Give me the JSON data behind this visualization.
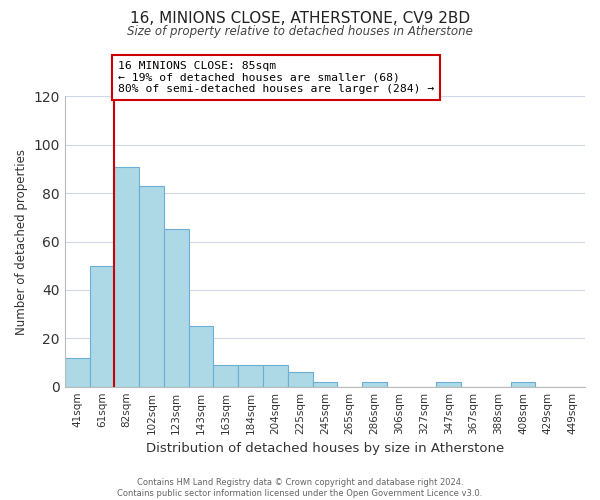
{
  "title": "16, MINIONS CLOSE, ATHERSTONE, CV9 2BD",
  "subtitle": "Size of property relative to detached houses in Atherstone",
  "xlabel": "Distribution of detached houses by size in Atherstone",
  "ylabel": "Number of detached properties",
  "footer_line1": "Contains HM Land Registry data © Crown copyright and database right 2024.",
  "footer_line2": "Contains public sector information licensed under the Open Government Licence v3.0.",
  "bar_labels": [
    "41sqm",
    "61sqm",
    "82sqm",
    "102sqm",
    "123sqm",
    "143sqm",
    "163sqm",
    "184sqm",
    "204sqm",
    "225sqm",
    "245sqm",
    "265sqm",
    "286sqm",
    "306sqm",
    "327sqm",
    "347sqm",
    "367sqm",
    "388sqm",
    "408sqm",
    "429sqm",
    "449sqm"
  ],
  "bar_values": [
    12,
    50,
    91,
    83,
    65,
    25,
    9,
    9,
    9,
    6,
    2,
    0,
    2,
    0,
    0,
    2,
    0,
    0,
    2,
    0,
    0
  ],
  "bar_color": "#add8e6",
  "bar_edge_color": "#6ab0d4",
  "vline_color": "#cc0000",
  "vline_index": 2,
  "annotation_line1": "16 MINIONS CLOSE: 85sqm",
  "annotation_line2": "← 19% of detached houses are smaller (68)",
  "annotation_line3": "80% of semi-detached houses are larger (284) →",
  "annotation_box_color": "#ffffff",
  "annotation_box_edge": "#cc0000",
  "ylim": [
    0,
    120
  ],
  "yticks": [
    0,
    20,
    40,
    60,
    80,
    100,
    120
  ],
  "background_color": "#ffffff",
  "grid_color": "#d0d8e8"
}
